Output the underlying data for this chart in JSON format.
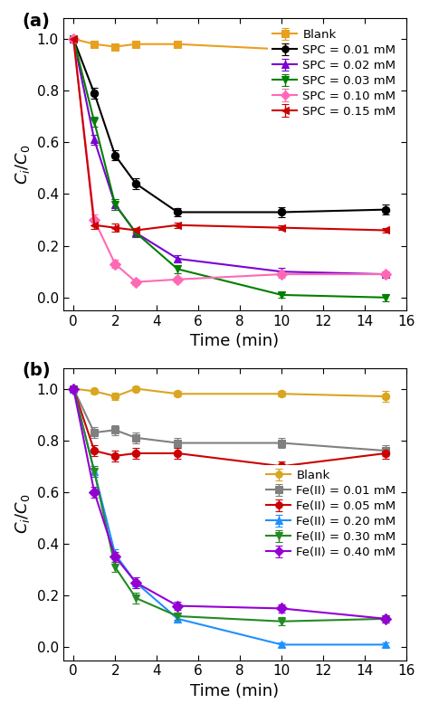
{
  "panel_a": {
    "label": "(a)",
    "series": [
      {
        "name": "Blank",
        "color": "#E8A020",
        "marker": "s",
        "x": [
          0,
          1,
          2,
          3,
          5,
          10,
          15
        ],
        "y": [
          1.0,
          0.98,
          0.97,
          0.98,
          0.98,
          0.96,
          0.97
        ],
        "yerr": [
          0.01,
          0.01,
          0.01,
          0.01,
          0.01,
          0.02,
          0.01
        ]
      },
      {
        "name": "SPC = 0.01 mM",
        "color": "#000000",
        "marker": "o",
        "x": [
          0,
          1,
          2,
          3,
          5,
          10,
          15
        ],
        "y": [
          1.0,
          0.79,
          0.55,
          0.44,
          0.33,
          0.33,
          0.34
        ],
        "yerr": [
          0.01,
          0.02,
          0.02,
          0.02,
          0.015,
          0.02,
          0.02
        ]
      },
      {
        "name": "SPC = 0.02 mM",
        "color": "#7B00D4",
        "marker": "^",
        "x": [
          0,
          1,
          2,
          3,
          5,
          10,
          15
        ],
        "y": [
          1.0,
          0.61,
          0.36,
          0.25,
          0.15,
          0.1,
          0.09
        ],
        "yerr": [
          0.01,
          0.02,
          0.02,
          0.015,
          0.015,
          0.015,
          0.01
        ]
      },
      {
        "name": "SPC = 0.03 mM",
        "color": "#008000",
        "marker": "v",
        "x": [
          0,
          1,
          2,
          3,
          5,
          10,
          15
        ],
        "y": [
          1.0,
          0.68,
          0.36,
          0.25,
          0.11,
          0.01,
          0.0
        ],
        "yerr": [
          0.01,
          0.02,
          0.02,
          0.015,
          0.015,
          0.01,
          0.015
        ]
      },
      {
        "name": "SPC = 0.10 mM",
        "color": "#FF69B4",
        "marker": "D",
        "x": [
          0,
          1,
          2,
          3,
          5,
          10,
          15
        ],
        "y": [
          1.0,
          0.3,
          0.13,
          0.06,
          0.07,
          0.09,
          0.09
        ],
        "yerr": [
          0.01,
          0.02,
          0.015,
          0.01,
          0.01,
          0.015,
          0.01
        ]
      },
      {
        "name": "SPC = 0.15 mM",
        "color": "#CC0000",
        "marker": "<",
        "x": [
          0,
          1,
          2,
          3,
          5,
          10,
          15
        ],
        "y": [
          1.0,
          0.28,
          0.27,
          0.26,
          0.28,
          0.27,
          0.26
        ],
        "yerr": [
          0.01,
          0.015,
          0.015,
          0.01,
          0.01,
          0.01,
          0.01
        ]
      }
    ],
    "xlabel": "Time (min)",
    "ylabel": "$C_i/C_0$",
    "xlim": [
      -0.5,
      16
    ],
    "ylim": [
      -0.05,
      1.08
    ],
    "xticks": [
      0,
      2,
      4,
      6,
      8,
      10,
      12,
      14,
      16
    ],
    "yticks": [
      0.0,
      0.2,
      0.4,
      0.6,
      0.8,
      1.0
    ],
    "legend_loc": "upper right"
  },
  "panel_b": {
    "label": "(b)",
    "series": [
      {
        "name": "Blank",
        "color": "#DAA520",
        "marker": "o",
        "x": [
          0,
          1,
          2,
          3,
          5,
          10,
          15
        ],
        "y": [
          1.0,
          0.99,
          0.97,
          1.0,
          0.98,
          0.98,
          0.97
        ],
        "yerr": [
          0.01,
          0.01,
          0.015,
          0.01,
          0.01,
          0.01,
          0.02
        ]
      },
      {
        "name": "Fe(II) = 0.01 mM",
        "color": "#808080",
        "marker": "s",
        "x": [
          0,
          1,
          2,
          3,
          5,
          10,
          15
        ],
        "y": [
          1.0,
          0.83,
          0.84,
          0.81,
          0.79,
          0.79,
          0.76
        ],
        "yerr": [
          0.01,
          0.02,
          0.02,
          0.02,
          0.02,
          0.02,
          0.02
        ]
      },
      {
        "name": "Fe(II) = 0.05 mM",
        "color": "#CC0000",
        "marker": "o",
        "x": [
          0,
          1,
          2,
          3,
          5,
          10,
          15
        ],
        "y": [
          1.0,
          0.76,
          0.74,
          0.75,
          0.75,
          0.7,
          0.75
        ],
        "yerr": [
          0.01,
          0.02,
          0.02,
          0.02,
          0.02,
          0.02,
          0.02
        ]
      },
      {
        "name": "Fe(II) = 0.20 mM",
        "color": "#1E90FF",
        "marker": "^",
        "x": [
          0,
          1,
          2,
          3,
          5,
          10,
          15
        ],
        "y": [
          1.0,
          0.68,
          0.36,
          0.25,
          0.11,
          0.01,
          0.01
        ],
        "yerr": [
          0.01,
          0.02,
          0.02,
          0.02,
          0.015,
          0.01,
          0.01
        ]
      },
      {
        "name": "Fe(II) = 0.30 mM",
        "color": "#228B22",
        "marker": "v",
        "x": [
          0,
          1,
          2,
          3,
          5,
          10,
          15
        ],
        "y": [
          1.0,
          0.68,
          0.31,
          0.19,
          0.12,
          0.1,
          0.11
        ],
        "yerr": [
          0.01,
          0.02,
          0.02,
          0.02,
          0.015,
          0.015,
          0.015
        ]
      },
      {
        "name": "Fe(II) = 0.40 mM",
        "color": "#9400D3",
        "marker": "D",
        "x": [
          0,
          1,
          2,
          3,
          5,
          10,
          15
        ],
        "y": [
          1.0,
          0.6,
          0.35,
          0.25,
          0.16,
          0.15,
          0.11
        ],
        "yerr": [
          0.01,
          0.02,
          0.02,
          0.02,
          0.015,
          0.015,
          0.015
        ]
      }
    ],
    "xlabel": "Time (min)",
    "ylabel": "$C_i/C_0$",
    "xlim": [
      -0.5,
      16
    ],
    "ylim": [
      -0.05,
      1.08
    ],
    "xticks": [
      0,
      2,
      4,
      6,
      8,
      10,
      12,
      14,
      16
    ],
    "yticks": [
      0.0,
      0.2,
      0.4,
      0.6,
      0.8,
      1.0
    ],
    "legend_loc": "center right"
  },
  "markersize": 6,
  "linewidth": 1.5,
  "capsize": 3,
  "elinewidth": 1.0,
  "markeredgewidth": 0.8,
  "tick_fontsize": 11,
  "label_fontsize": 13,
  "legend_fontsize": 9.5,
  "panel_label_fontsize": 14
}
